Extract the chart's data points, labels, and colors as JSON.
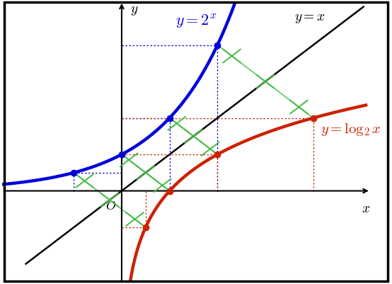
{
  "background_color": "#ffffff",
  "blue_color": "#0000dd",
  "red_color": "#cc2200",
  "green_color": "#44bb44",
  "black_color": "#000000",
  "blue_points": [
    [
      1,
      2
    ],
    [
      2,
      4
    ]
  ],
  "blue_points_extra": [
    [
      -1,
      0.5
    ],
    [
      0,
      1
    ]
  ],
  "red_points": [
    [
      2,
      1
    ],
    [
      4,
      2
    ]
  ],
  "red_points_extra": [
    [
      0.5,
      -1
    ],
    [
      1,
      0
    ]
  ],
  "xlim": [
    -2.5,
    5.2
  ],
  "ylim": [
    -2.5,
    5.2
  ],
  "origin_label": "O",
  "xlabel": "x",
  "ylabel": "y"
}
